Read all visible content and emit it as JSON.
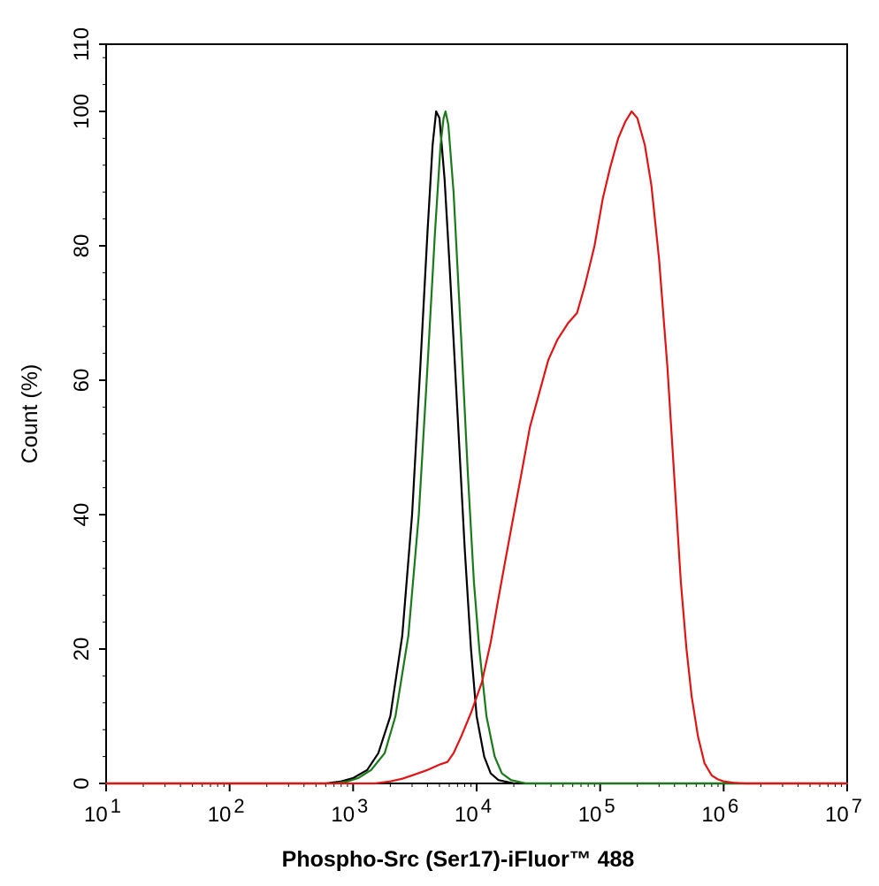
{
  "chart_data": {
    "type": "line",
    "title": "",
    "xlabel": "Phospho-Src (Ser17)-iFluor™ 488",
    "ylabel": "Count  (%)",
    "xscale": "log",
    "xlim": [
      10,
      10000000
    ],
    "ylim": [
      0,
      110
    ],
    "grid": false,
    "legend": "none",
    "x_ticks": [
      {
        "base": "10",
        "exp": "1"
      },
      {
        "base": "10",
        "exp": "2"
      },
      {
        "base": "10",
        "exp": "3"
      },
      {
        "base": "10",
        "exp": "4"
      },
      {
        "base": "10",
        "exp": "5"
      },
      {
        "base": "10",
        "exp": "6"
      },
      {
        "base": "10",
        "exp": "7"
      }
    ],
    "y_ticks": [
      "0",
      "20",
      "40",
      "60",
      "80",
      "100",
      "110"
    ],
    "series": [
      {
        "color": "#000000",
        "points": [
          [
            10,
            0
          ],
          [
            600,
            0
          ],
          [
            800,
            0.3
          ],
          [
            1000,
            0.8
          ],
          [
            1300,
            2
          ],
          [
            1600,
            4.5
          ],
          [
            2000,
            10
          ],
          [
            2500,
            22
          ],
          [
            3000,
            40
          ],
          [
            3500,
            62
          ],
          [
            4000,
            82
          ],
          [
            4400,
            95
          ],
          [
            4700,
            100
          ],
          [
            5000,
            99
          ],
          [
            5500,
            90
          ],
          [
            6000,
            78
          ],
          [
            7000,
            55
          ],
          [
            8000,
            35
          ],
          [
            9000,
            20
          ],
          [
            10000,
            10
          ],
          [
            11500,
            4
          ],
          [
            13000,
            1.5
          ],
          [
            15000,
            0.5
          ],
          [
            20000,
            0
          ],
          [
            10000000,
            0
          ]
        ]
      },
      {
        "color": "#1a7a1a",
        "points": [
          [
            10,
            0
          ],
          [
            700,
            0
          ],
          [
            900,
            0.3
          ],
          [
            1100,
            0.8
          ],
          [
            1400,
            2
          ],
          [
            1800,
            4.5
          ],
          [
            2200,
            10
          ],
          [
            2800,
            22
          ],
          [
            3400,
            40
          ],
          [
            4000,
            62
          ],
          [
            4600,
            82
          ],
          [
            5100,
            95
          ],
          [
            5400,
            99
          ],
          [
            5600,
            100
          ],
          [
            5900,
            98
          ],
          [
            6500,
            88
          ],
          [
            7500,
            66
          ],
          [
            8500,
            46
          ],
          [
            9500,
            30
          ],
          [
            10500,
            20
          ],
          [
            12000,
            10
          ],
          [
            14000,
            4
          ],
          [
            16000,
            1.5
          ],
          [
            19000,
            0.5
          ],
          [
            25000,
            0
          ],
          [
            10000000,
            0
          ]
        ]
      },
      {
        "color": "#e01414",
        "points": [
          [
            10,
            0
          ],
          [
            1500,
            0
          ],
          [
            2000,
            0.3
          ],
          [
            2500,
            0.7
          ],
          [
            3000,
            1.2
          ],
          [
            4000,
            2
          ],
          [
            5000,
            2.8
          ],
          [
            5800,
            3.2
          ],
          [
            6500,
            4.5
          ],
          [
            7500,
            7
          ],
          [
            9000,
            10.5
          ],
          [
            11000,
            15
          ],
          [
            13000,
            21
          ],
          [
            15000,
            27.5
          ],
          [
            17000,
            33
          ],
          [
            20000,
            40
          ],
          [
            23000,
            46
          ],
          [
            27000,
            53
          ],
          [
            32000,
            58
          ],
          [
            38000,
            63
          ],
          [
            45000,
            66
          ],
          [
            55000,
            68.5
          ],
          [
            65000,
            70
          ],
          [
            75000,
            74
          ],
          [
            90000,
            80
          ],
          [
            105000,
            87
          ],
          [
            120000,
            91.5
          ],
          [
            140000,
            96
          ],
          [
            160000,
            98.5
          ],
          [
            180000,
            100
          ],
          [
            200000,
            99
          ],
          [
            230000,
            95
          ],
          [
            260000,
            89
          ],
          [
            300000,
            78
          ],
          [
            350000,
            62
          ],
          [
            400000,
            45
          ],
          [
            450000,
            30
          ],
          [
            500000,
            20
          ],
          [
            550000,
            13
          ],
          [
            620000,
            7
          ],
          [
            700000,
            3
          ],
          [
            800000,
            1.2
          ],
          [
            900000,
            0.6
          ],
          [
            1000000,
            0.3
          ],
          [
            1200000,
            0.1
          ],
          [
            1500000,
            0
          ],
          [
            10000000,
            0
          ]
        ]
      }
    ]
  }
}
